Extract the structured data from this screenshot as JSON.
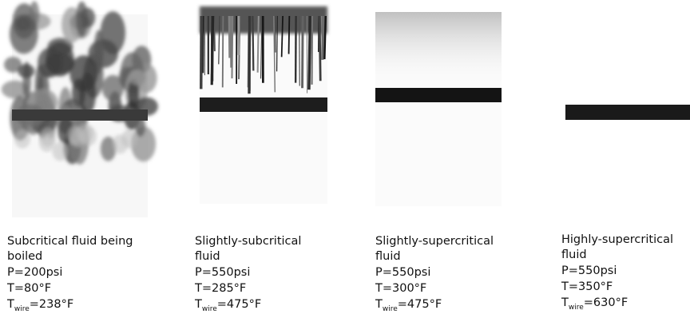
{
  "panels": [
    {
      "caption": "Subcritical fluid being boiled",
      "pressure": "P=200psi",
      "temperature": "T=80°F",
      "wire_temperature": {
        "symbol": "T",
        "subscript": "wire",
        "value": "=238°F"
      }
    },
    {
      "caption": "Slightly-subcritical fluid",
      "pressure": "P=550psi",
      "temperature": "T=285°F",
      "wire_temperature": {
        "symbol": "T",
        "subscript": "wire",
        "value": "=475°F"
      }
    },
    {
      "caption": "Slightly-supercritical fluid",
      "pressure": "P=550psi",
      "temperature": "T=300°F",
      "wire_temperature": {
        "symbol": "T",
        "subscript": "wire",
        "value": "=475°F"
      }
    },
    {
      "caption": "Highly-supercritical fluid",
      "pressure": "P=550psi",
      "temperature": "T=350°F",
      "wire_temperature": {
        "symbol": "T",
        "subscript": "wire",
        "value": "=630°F"
      }
    }
  ]
}
